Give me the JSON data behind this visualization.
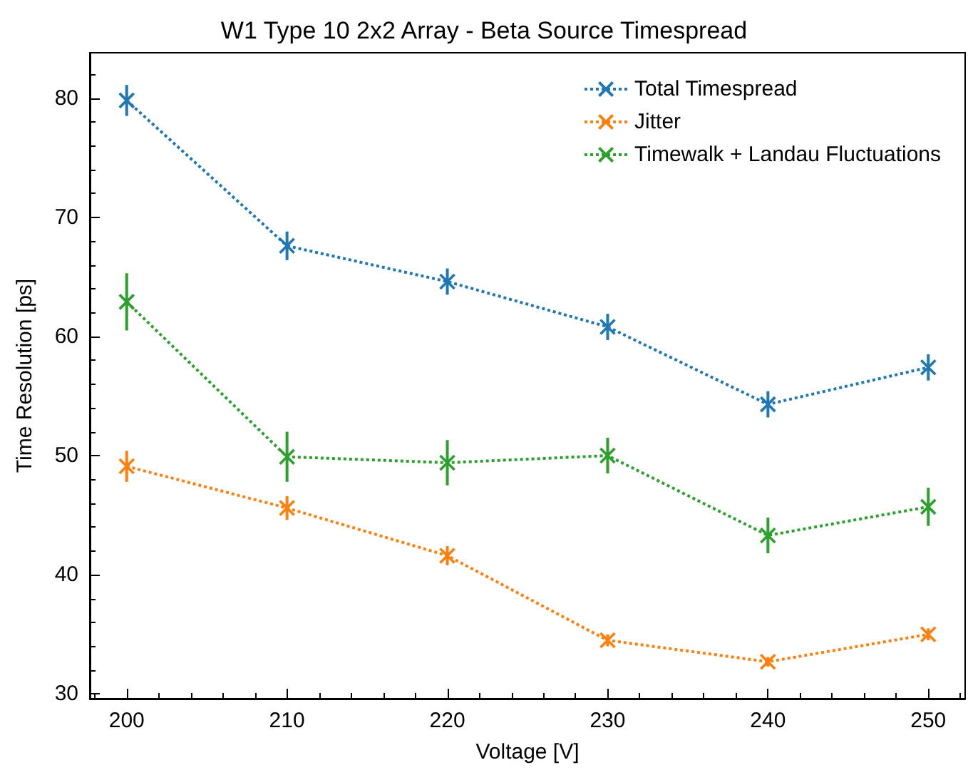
{
  "chart_data": {
    "type": "line",
    "title": "W1 Type 10 2x2 Array - Beta Source Timespread",
    "xlabel": "Voltage [V]",
    "ylabel": "Time Resolution [ps]",
    "x": [
      200,
      210,
      220,
      230,
      240,
      250
    ],
    "series": [
      {
        "name": "Total Timespread",
        "color": "#1f77b4",
        "values": [
          79.8,
          67.6,
          64.6,
          60.8,
          54.3,
          57.4
        ],
        "errors": [
          1.3,
          1.2,
          1.1,
          1.1,
          1.1,
          1.1
        ]
      },
      {
        "name": "Jitter",
        "color": "#ff7f0e",
        "values": [
          49.1,
          45.6,
          41.6,
          34.5,
          32.7,
          35.0
        ],
        "errors": [
          1.3,
          1.0,
          0.8,
          0.5,
          0.4,
          0.5
        ]
      },
      {
        "name": "Timewalk + Landau Fluctuations",
        "color": "#2ca02c",
        "values": [
          62.9,
          49.9,
          49.4,
          50.0,
          43.3,
          45.7
        ],
        "errors": [
          2.4,
          2.1,
          1.9,
          1.5,
          1.5,
          1.6
        ]
      }
    ],
    "xlim": [
      197.7,
      252.3
    ],
    "xticks": [
      200,
      210,
      220,
      230,
      240,
      250
    ],
    "ylim": [
      29.6,
      83.8
    ],
    "yticks": [
      30,
      40,
      50,
      60,
      70,
      80
    ],
    "grid": false,
    "legend": "top right",
    "marker": "cross",
    "line_style": "dotted"
  }
}
